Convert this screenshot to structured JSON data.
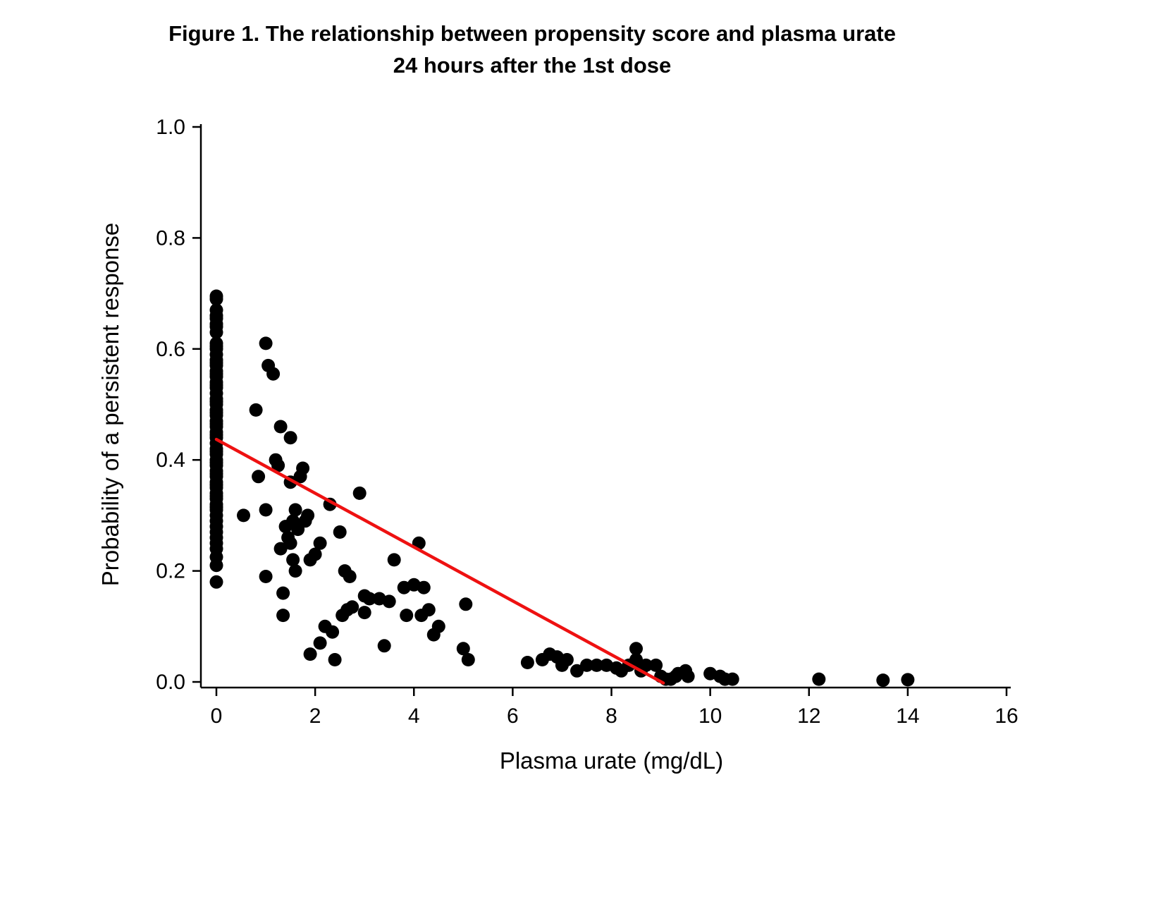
{
  "figure": {
    "title_line1": "Figure 1. The relationship between propensity score and plasma urate",
    "title_line2": "24 hours after the 1st dose"
  },
  "chart_data": {
    "type": "scatter",
    "title": "Figure 1. The relationship between propensity score and plasma urate 24 hours after the 1st dose",
    "xlabel": "Plasma urate (mg/dL)",
    "ylabel": "Probability of a persistent response",
    "xlim": [
      0,
      16
    ],
    "ylim": [
      0.0,
      1.0
    ],
    "x_ticks": [
      0,
      2,
      4,
      6,
      8,
      10,
      12,
      14,
      16
    ],
    "y_ticks": [
      0.0,
      0.2,
      0.4,
      0.6,
      0.8,
      1.0
    ],
    "grid": false,
    "legend": "none",
    "marker_color": "#000000",
    "trend_line": {
      "color": "#ee1111",
      "x1": 0.0,
      "y1": 0.437,
      "x2": 9.05,
      "y2": -0.002
    },
    "points": [
      [
        0,
        0.18
      ],
      [
        0,
        0.21
      ],
      [
        0,
        0.225
      ],
      [
        0,
        0.24
      ],
      [
        0,
        0.25
      ],
      [
        0,
        0.26
      ],
      [
        0,
        0.27
      ],
      [
        0,
        0.28
      ],
      [
        0,
        0.29
      ],
      [
        0,
        0.3
      ],
      [
        0,
        0.31
      ],
      [
        0,
        0.315
      ],
      [
        0,
        0.32
      ],
      [
        0,
        0.33
      ],
      [
        0,
        0.335
      ],
      [
        0,
        0.34
      ],
      [
        0,
        0.35
      ],
      [
        0,
        0.355
      ],
      [
        0,
        0.36
      ],
      [
        0,
        0.37
      ],
      [
        0,
        0.375
      ],
      [
        0,
        0.38
      ],
      [
        0,
        0.39
      ],
      [
        0,
        0.395
      ],
      [
        0,
        0.4
      ],
      [
        0,
        0.41
      ],
      [
        0,
        0.415
      ],
      [
        0,
        0.42
      ],
      [
        0,
        0.43
      ],
      [
        0,
        0.44
      ],
      [
        0,
        0.445
      ],
      [
        0,
        0.45
      ],
      [
        0,
        0.46
      ],
      [
        0,
        0.465
      ],
      [
        0,
        0.47
      ],
      [
        0,
        0.48
      ],
      [
        0,
        0.485
      ],
      [
        0,
        0.49
      ],
      [
        0,
        0.5
      ],
      [
        0,
        0.505
      ],
      [
        0,
        0.51
      ],
      [
        0,
        0.52
      ],
      [
        0,
        0.53
      ],
      [
        0,
        0.535
      ],
      [
        0,
        0.54
      ],
      [
        0,
        0.55
      ],
      [
        0,
        0.555
      ],
      [
        0,
        0.56
      ],
      [
        0,
        0.57
      ],
      [
        0,
        0.575
      ],
      [
        0,
        0.58
      ],
      [
        0,
        0.59
      ],
      [
        0,
        0.6
      ],
      [
        0,
        0.605
      ],
      [
        0,
        0.61
      ],
      [
        0,
        0.63
      ],
      [
        0,
        0.64
      ],
      [
        0,
        0.645
      ],
      [
        0,
        0.655
      ],
      [
        0,
        0.66
      ],
      [
        0,
        0.67
      ],
      [
        0,
        0.69
      ],
      [
        0,
        0.695
      ],
      [
        0.55,
        0.3
      ],
      [
        0.8,
        0.49
      ],
      [
        0.85,
        0.37
      ],
      [
        1.0,
        0.61
      ],
      [
        1.05,
        0.57
      ],
      [
        1.0,
        0.31
      ],
      [
        1.0,
        0.19
      ],
      [
        1.15,
        0.555
      ],
      [
        1.2,
        0.4
      ],
      [
        1.25,
        0.39
      ],
      [
        1.3,
        0.46
      ],
      [
        1.3,
        0.24
      ],
      [
        1.35,
        0.16
      ],
      [
        1.35,
        0.12
      ],
      [
        1.4,
        0.28
      ],
      [
        1.45,
        0.26
      ],
      [
        1.5,
        0.44
      ],
      [
        1.5,
        0.36
      ],
      [
        1.55,
        0.29
      ],
      [
        1.5,
        0.25
      ],
      [
        1.55,
        0.22
      ],
      [
        1.6,
        0.2
      ],
      [
        1.6,
        0.31
      ],
      [
        1.65,
        0.275
      ],
      [
        1.7,
        0.37
      ],
      [
        1.75,
        0.385
      ],
      [
        1.8,
        0.29
      ],
      [
        1.85,
        0.3
      ],
      [
        1.9,
        0.22
      ],
      [
        1.9,
        0.05
      ],
      [
        2.0,
        0.23
      ],
      [
        2.1,
        0.25
      ],
      [
        2.1,
        0.07
      ],
      [
        2.2,
        0.1
      ],
      [
        2.3,
        0.32
      ],
      [
        2.35,
        0.09
      ],
      [
        2.4,
        0.04
      ],
      [
        2.5,
        0.27
      ],
      [
        2.55,
        0.12
      ],
      [
        2.6,
        0.2
      ],
      [
        2.65,
        0.13
      ],
      [
        2.7,
        0.19
      ],
      [
        2.75,
        0.135
      ],
      [
        2.9,
        0.34
      ],
      [
        3.0,
        0.155
      ],
      [
        3.0,
        0.125
      ],
      [
        3.1,
        0.15
      ],
      [
        3.3,
        0.15
      ],
      [
        3.4,
        0.065
      ],
      [
        3.5,
        0.145
      ],
      [
        3.6,
        0.22
      ],
      [
        3.8,
        0.17
      ],
      [
        3.85,
        0.12
      ],
      [
        4.0,
        0.175
      ],
      [
        4.1,
        0.25
      ],
      [
        4.15,
        0.12
      ],
      [
        4.2,
        0.17
      ],
      [
        4.3,
        0.13
      ],
      [
        4.4,
        0.085
      ],
      [
        4.5,
        0.1
      ],
      [
        5.0,
        0.06
      ],
      [
        5.05,
        0.14
      ],
      [
        5.1,
        0.04
      ],
      [
        6.3,
        0.035
      ],
      [
        6.6,
        0.04
      ],
      [
        6.75,
        0.05
      ],
      [
        6.9,
        0.045
      ],
      [
        7.0,
        0.03
      ],
      [
        7.1,
        0.04
      ],
      [
        7.3,
        0.02
      ],
      [
        7.5,
        0.03
      ],
      [
        7.7,
        0.03
      ],
      [
        7.9,
        0.03
      ],
      [
        8.1,
        0.025
      ],
      [
        8.2,
        0.02
      ],
      [
        8.35,
        0.03
      ],
      [
        8.5,
        0.06
      ],
      [
        8.5,
        0.04
      ],
      [
        8.6,
        0.02
      ],
      [
        8.7,
        0.03
      ],
      [
        8.9,
        0.03
      ],
      [
        9.0,
        0.01
      ],
      [
        9.1,
        0.005
      ],
      [
        9.2,
        0.005
      ],
      [
        9.3,
        0.01
      ],
      [
        9.35,
        0.015
      ],
      [
        9.5,
        0.02
      ],
      [
        9.55,
        0.01
      ],
      [
        10.0,
        0.015
      ],
      [
        10.2,
        0.01
      ],
      [
        10.3,
        0.005
      ],
      [
        10.45,
        0.005
      ],
      [
        12.2,
        0.005
      ],
      [
        13.5,
        0.003
      ],
      [
        14.0,
        0.004
      ]
    ]
  }
}
